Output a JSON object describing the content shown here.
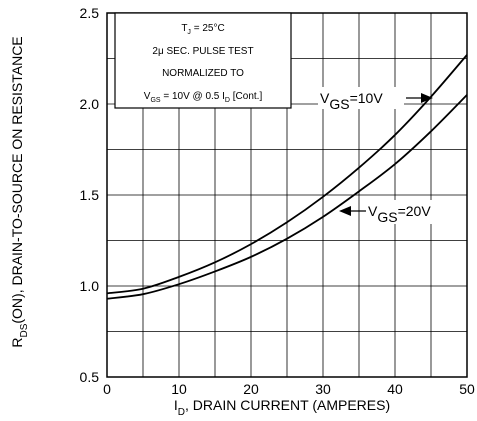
{
  "chart_data": {
    "type": "line",
    "xlabel": {
      "main": "I",
      "sub": "D",
      "rest": ", DRAIN CURRENT (AMPERES)"
    },
    "ylabel": {
      "main": "R",
      "sub": "DS",
      "rest": "(ON), DRAIN-TO-SOURCE ON RESISTANCE"
    },
    "xlim": [
      0,
      50
    ],
    "ylim": [
      0.5,
      2.5
    ],
    "xticks": [
      "0",
      "10",
      "20",
      "30",
      "40",
      "50"
    ],
    "yticks": [
      "0.5",
      "1.0",
      "1.5",
      "2.0",
      "2.5"
    ],
    "grid": true,
    "legend": "none",
    "conditions": {
      "line1": {
        "pre": "T",
        "sub": "J",
        "post": " = 25°C"
      },
      "line2": "2μ SEC. PULSE TEST",
      "line3": "NORMALIZED TO",
      "line4": {
        "pre": "V",
        "sub": "GS",
        "mid": " = 10V  @  0.5  I",
        "sub2": "D",
        "post": " [Cont.]"
      }
    },
    "series": [
      {
        "label": {
          "pre": "V",
          "sub": "GS",
          "post": "=10V"
        },
        "x": [
          0,
          5,
          10,
          15,
          20,
          25,
          30,
          35,
          40,
          45,
          50
        ],
        "y": [
          0.96,
          0.985,
          1.05,
          1.13,
          1.23,
          1.35,
          1.49,
          1.65,
          1.83,
          2.04,
          2.27
        ]
      },
      {
        "label": {
          "pre": "V",
          "sub": "GS",
          "post": "=20V"
        },
        "x": [
          0,
          5,
          10,
          15,
          20,
          25,
          30,
          35,
          40,
          45,
          50
        ],
        "y": [
          0.93,
          0.955,
          1.01,
          1.08,
          1.16,
          1.26,
          1.38,
          1.52,
          1.67,
          1.85,
          2.05
        ]
      }
    ]
  }
}
